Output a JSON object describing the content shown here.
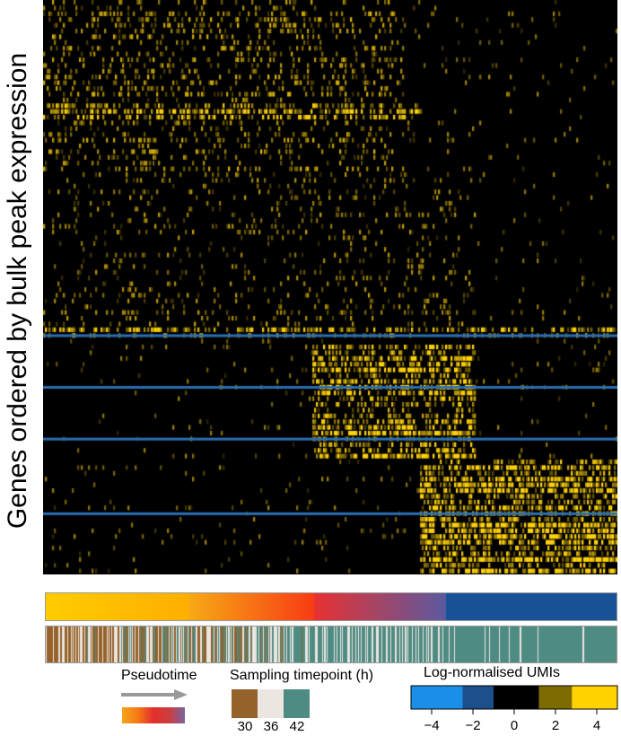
{
  "chart_data": {
    "type": "heatmap",
    "title": "",
    "xlabel": "",
    "ylabel": "Genes ordered by bulk peak expression",
    "n_genes": 100,
    "n_cells": 320,
    "highlighted_rows": [
      58,
      67,
      76,
      89
    ],
    "expression_blocks": [
      {
        "genes": [
          0,
          30
        ],
        "cells": [
          0,
          200
        ],
        "level": 0.25
      },
      {
        "genes": [
          18,
          20
        ],
        "cells": [
          0,
          210
        ],
        "level": 0.6
      },
      {
        "genes": [
          30,
          56
        ],
        "cells": [
          0,
          240
        ],
        "level": 0.15
      },
      {
        "genes": [
          57,
          58
        ],
        "cells": [
          0,
          320
        ],
        "level": 0.5
      },
      {
        "genes": [
          60,
          79
        ],
        "cells": [
          150,
          240
        ],
        "level": 0.7
      },
      {
        "genes": [
          80,
          99
        ],
        "cells": [
          210,
          320
        ],
        "level": 0.75
      }
    ],
    "legends": {
      "pseudotime": {
        "title": "Pseudotime",
        "gradient": [
          "#f6a31d",
          "#f47a14",
          "#e32e2e",
          "#cc3e3e",
          "#7a63a3"
        ]
      },
      "sampling": {
        "title": "Sampling timepoint (h)",
        "items": [
          {
            "label": "30",
            "color": "#94622a"
          },
          {
            "label": "36",
            "color": "#ece6e1"
          },
          {
            "label": "42",
            "color": "#4e8b82"
          }
        ]
      },
      "umis": {
        "title": "Log-normalised UMIs",
        "range": [
          -5,
          5
        ],
        "ticks": [
          -4,
          -2,
          0,
          2,
          4
        ],
        "tick_labels": [
          "−4",
          "−2",
          "0",
          "2",
          "4"
        ],
        "bands": [
          {
            "from": -5,
            "to": -2.5,
            "color": "#1b8fe8"
          },
          {
            "from": -2.5,
            "to": -1,
            "color": "#1c4f8c"
          },
          {
            "from": -1,
            "to": 1.2,
            "color": "#000000"
          },
          {
            "from": 1.2,
            "to": 2.8,
            "color": "#7d6b00"
          },
          {
            "from": 2.8,
            "to": 5,
            "color": "#ffd200"
          }
        ]
      }
    }
  }
}
